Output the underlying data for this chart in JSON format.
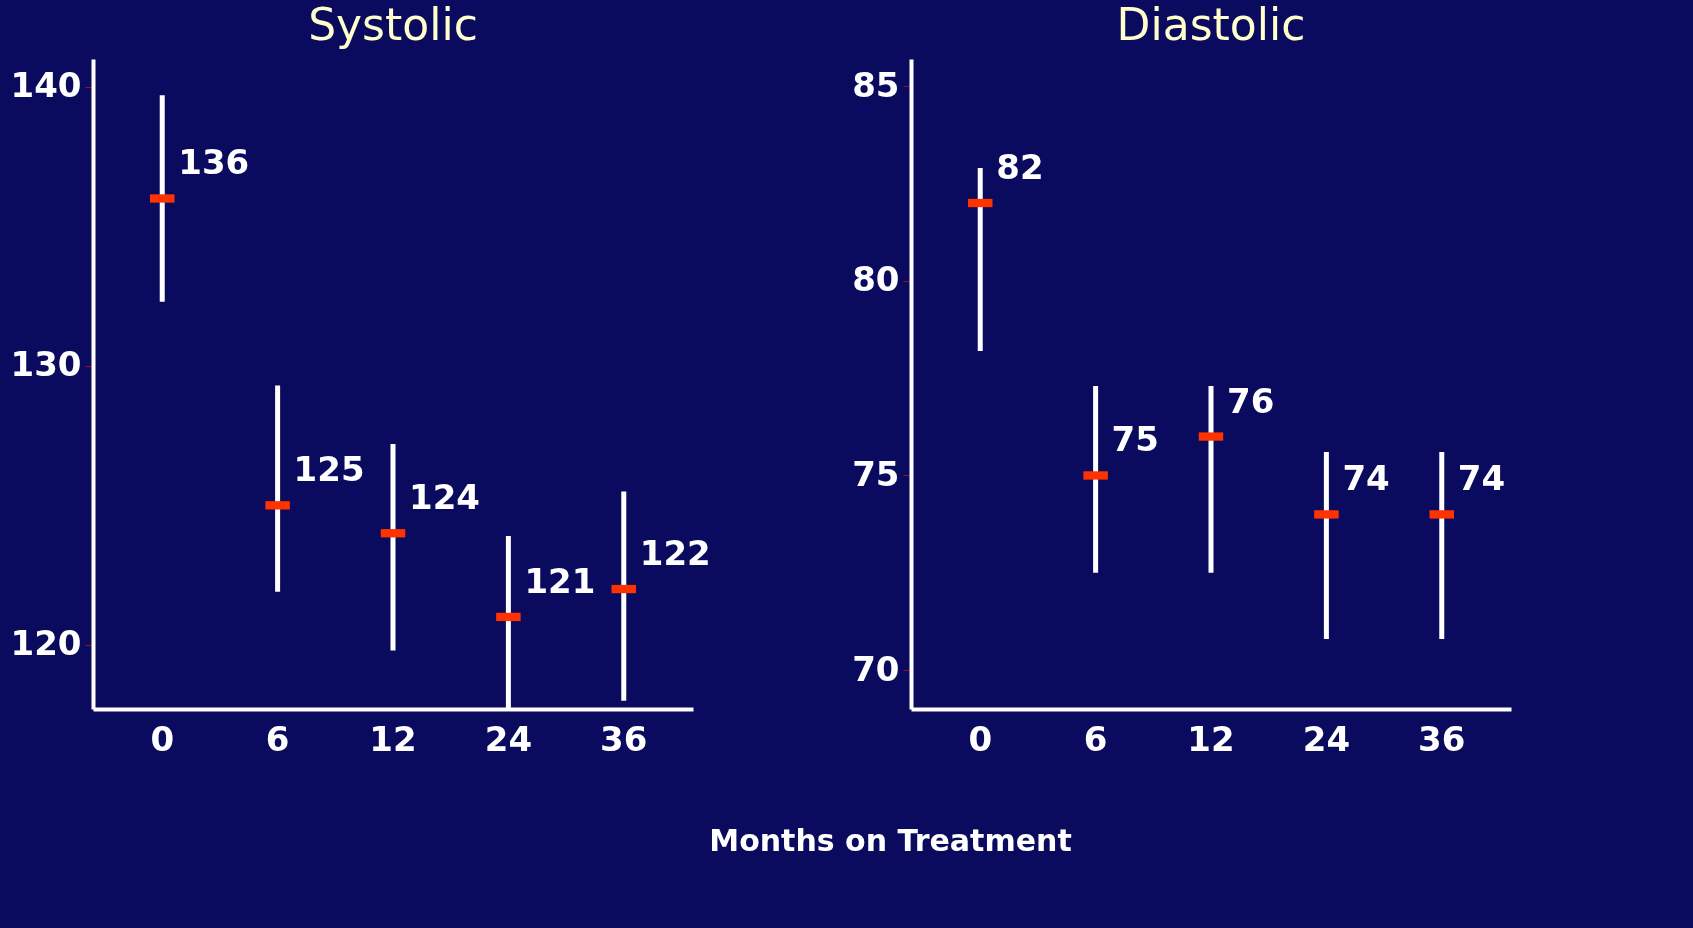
{
  "chart_data": [
    {
      "type": "scatter",
      "title": "Systolic",
      "xlabel": "Months on Treatment",
      "categories": [
        "0",
        "6",
        "12",
        "24",
        "36"
      ],
      "series": [
        {
          "color": "#ff3300",
          "values": [
            136,
            125,
            124,
            121,
            122
          ],
          "errors": [
            [
              132.3,
              139.7
            ],
            [
              121.9,
              129.3
            ],
            [
              119.8,
              127.2
            ],
            [
              117.7,
              123.9
            ],
            [
              118.0,
              125.5
            ]
          ]
        }
      ],
      "ylim": [
        117.7,
        141
      ],
      "yticks": [
        120,
        130,
        140
      ],
      "data_labels": true,
      "grid": false
    },
    {
      "type": "scatter",
      "title": "Diastolic",
      "categories": [
        "0",
        "6",
        "12",
        "24",
        "36"
      ],
      "series": [
        {
          "color": "#ff3300",
          "values": [
            82,
            75,
            76,
            74,
            74
          ],
          "errors": [
            [
              78.2,
              82.9
            ],
            [
              72.5,
              77.3
            ],
            [
              72.5,
              77.3
            ],
            [
              70.8,
              75.6
            ],
            [
              70.8,
              75.6
            ]
          ]
        }
      ],
      "ylim": [
        69,
        85.7
      ],
      "yticks": [
        70,
        75,
        80,
        85
      ],
      "data_labels": true,
      "grid": false
    }
  ]
}
